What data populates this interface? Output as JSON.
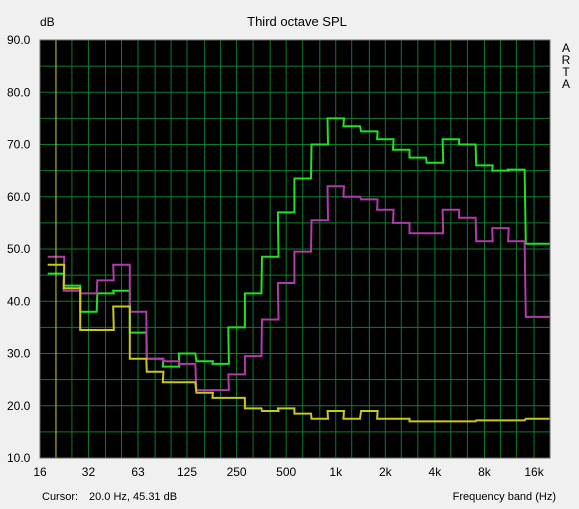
{
  "colors": {
    "background": "#f0f0f0",
    "plot_bg": "#000000",
    "grid": "#0f7a2e",
    "plot_border": "#6a6a6a"
  },
  "chart_data": {
    "type": "line",
    "title": "Third octave SPL",
    "ylabel": "dB",
    "xlabel": "Frequency band (Hz)",
    "side_label": [
      "A",
      "R",
      "T",
      "A"
    ],
    "ylim": [
      10,
      90
    ],
    "y_ticks": [
      "10.0",
      "20.0",
      "30.0",
      "40.0",
      "50.0",
      "60.0",
      "70.0",
      "80.0",
      "90.0"
    ],
    "x_scale": "log",
    "xlim": [
      16,
      20000
    ],
    "x_ticks": [
      {
        "f": 16,
        "label": "16"
      },
      {
        "f": 31.5,
        "label": "32"
      },
      {
        "f": 63,
        "label": "63"
      },
      {
        "f": 125,
        "label": "125"
      },
      {
        "f": 250,
        "label": "250"
      },
      {
        "f": 500,
        "label": "500"
      },
      {
        "f": 1000,
        "label": "1k"
      },
      {
        "f": 2000,
        "label": "2k"
      },
      {
        "f": 4000,
        "label": "4k"
      },
      {
        "f": 8000,
        "label": "8k"
      },
      {
        "f": 16000,
        "label": "16k"
      }
    ],
    "grid": true,
    "cursor_label": "Cursor:",
    "cursor_value": "20.0 Hz, 45.31 dB",
    "cursor_freq": 20,
    "cursor_color": "#c8c820",
    "bands": [
      20,
      25,
      31.5,
      40,
      50,
      63,
      80,
      100,
      125,
      160,
      200,
      250,
      315,
      400,
      500,
      630,
      800,
      1000,
      1250,
      1600,
      2000,
      2500,
      3150,
      4000,
      5000,
      6300,
      8000,
      10000,
      12500,
      16000,
      20000
    ],
    "series": [
      {
        "color": "#22e022",
        "values": [
          45.3,
          43.0,
          38.0,
          41.5,
          42.0,
          34.0,
          29.0,
          27.5,
          30.0,
          28.5,
          28.0,
          35.0,
          41.5,
          48.5,
          57.0,
          63.5,
          70.0,
          75.0,
          73.5,
          72.5,
          71.0,
          69.0,
          67.5,
          66.5,
          71.0,
          70.0,
          66.0,
          65.0,
          65.2,
          51.0,
          51.0
        ]
      },
      {
        "color": "#b03ca8",
        "values": [
          48.5,
          42.0,
          41.5,
          44.0,
          47.0,
          38.0,
          29.0,
          28.5,
          28.0,
          23.0,
          23.0,
          26.0,
          29.5,
          36.5,
          43.5,
          49.5,
          55.5,
          62.0,
          60.0,
          59.5,
          57.5,
          55.0,
          53.0,
          53.0,
          57.5,
          56.0,
          51.5,
          54.0,
          51.5,
          37.0,
          37.0
        ]
      },
      {
        "color": "#c8c820",
        "values": [
          47.0,
          42.5,
          34.5,
          34.5,
          39.0,
          29.0,
          26.5,
          24.5,
          24.5,
          22.5,
          21.5,
          21.5,
          19.5,
          19.0,
          19.5,
          18.5,
          17.5,
          19.0,
          17.5,
          19.0,
          17.5,
          17.5,
          17.0,
          17.0,
          17.0,
          17.0,
          17.2,
          17.2,
          17.2,
          17.5,
          17.5
        ]
      }
    ]
  }
}
